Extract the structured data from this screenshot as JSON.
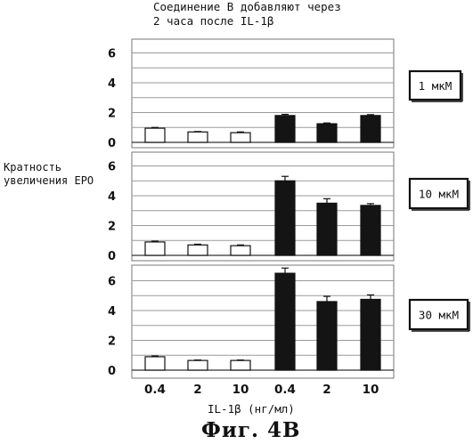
{
  "chart_data": {
    "type": "bar",
    "title": "Соединение В добавляют через 2 часа после IL-1β",
    "title_lines": [
      "Соединение В добавляют через",
      "2 часа после IL-1β"
    ],
    "ylabel_lines": [
      "Кратность",
      "увеличения ЕРО"
    ],
    "xlabel": "IL-1β (нг/мл)",
    "caption": "Фиг. 4В",
    "categories": [
      "0.4",
      "2",
      "10",
      "0.4",
      "2",
      "10"
    ],
    "bar_fill": [
      "white",
      "white",
      "white",
      "black",
      "black",
      "black"
    ],
    "ylim": [
      0,
      6.5
    ],
    "yticks": [
      0,
      2,
      4,
      6
    ],
    "grid": true,
    "panels": [
      {
        "label": "1 мкМ",
        "values": [
          0.95,
          0.7,
          0.65,
          1.8,
          1.25,
          1.8
        ],
        "errors": [
          0.05,
          0.03,
          0.05,
          0.08,
          0.05,
          0.06
        ]
      },
      {
        "label": "10 мкМ",
        "values": [
          0.9,
          0.7,
          0.65,
          5.0,
          3.5,
          3.35
        ],
        "errors": [
          0.05,
          0.05,
          0.05,
          0.3,
          0.3,
          0.12
        ]
      },
      {
        "label": "30 мкМ",
        "values": [
          0.9,
          0.65,
          0.65,
          6.5,
          4.6,
          4.75
        ],
        "errors": [
          0.05,
          0.03,
          0.03,
          0.35,
          0.35,
          0.3
        ]
      }
    ]
  }
}
